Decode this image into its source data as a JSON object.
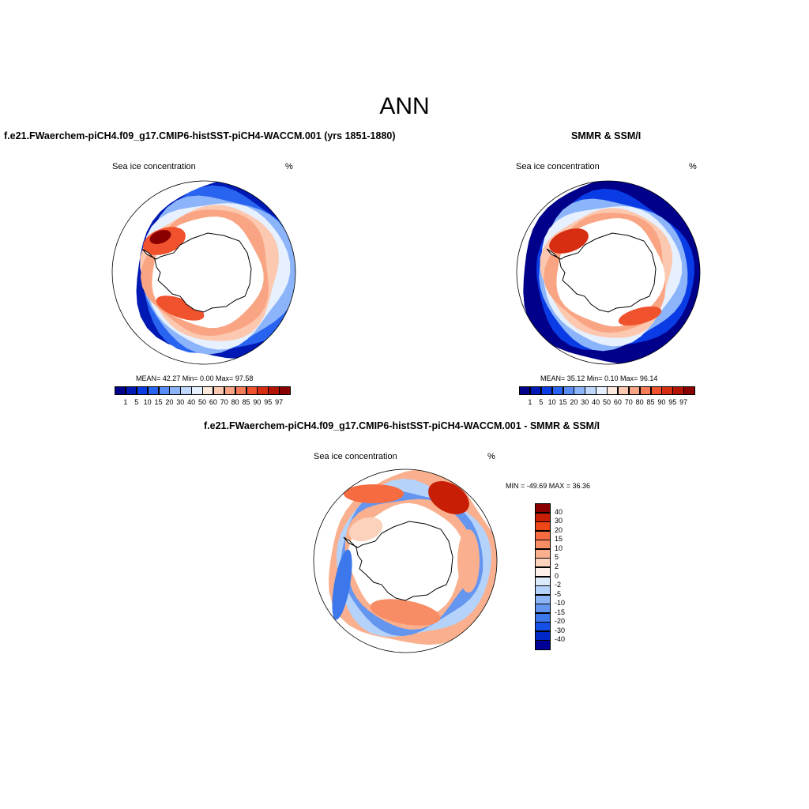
{
  "figure_title": "ANN",
  "panels": [
    {
      "title": "f.e21.FWaerchem-piCH4.f09_g17.CMIP6-histSST-piCH4-WACCM.001 (yrs 1851-1880)",
      "variable": "Sea ice concentration",
      "units": "%",
      "stats": "MEAN=  42.27  Min=   0.00  Max=  97.58"
    },
    {
      "title": "SMMR & SSM/I",
      "variable": "Sea ice concentration",
      "units": "%",
      "stats": "MEAN=  35.12  Min=   0.10  Max=  96.14"
    },
    {
      "title": "f.e21.FWaerchem-piCH4.f09_g17.CMIP6-histSST-piCH4-WACCM.001 - SMMR & SSM/I",
      "variable": "Sea ice concentration",
      "units": "%",
      "stats": "MIN = -49.69 MAX =  36.36"
    }
  ],
  "colorbar_levels": [
    "1",
    "5",
    "10",
    "15",
    "20",
    "30",
    "40",
    "50",
    "60",
    "70",
    "80",
    "85",
    "90",
    "95",
    "97"
  ],
  "colorbar_colors": [
    "#00008a",
    "#0019b4",
    "#0a3ce6",
    "#2864f0",
    "#5a8cf5",
    "#8cb4fa",
    "#bed7fc",
    "#e6f0fe",
    "#fde8dc",
    "#fcc8b0",
    "#f9a584",
    "#f67c58",
    "#f0522d",
    "#d72d12",
    "#b41405",
    "#8a0000"
  ],
  "diff_levels": [
    "40",
    "30",
    "20",
    "15",
    "10",
    "5",
    "2",
    "0",
    "-2",
    "-5",
    "-10",
    "-15",
    "-20",
    "-30",
    "-40"
  ],
  "diff_colors": [
    "#8a0000",
    "#c81e06",
    "#ee4617",
    "#f66c40",
    "#f88c64",
    "#fab08e",
    "#fcd2bc",
    "#fdf0e8",
    "#dcebfc",
    "#b4d2fa",
    "#8cb4f6",
    "#6496f0",
    "#3c78ec",
    "#1450e6",
    "#0028c8",
    "#000096"
  ]
}
